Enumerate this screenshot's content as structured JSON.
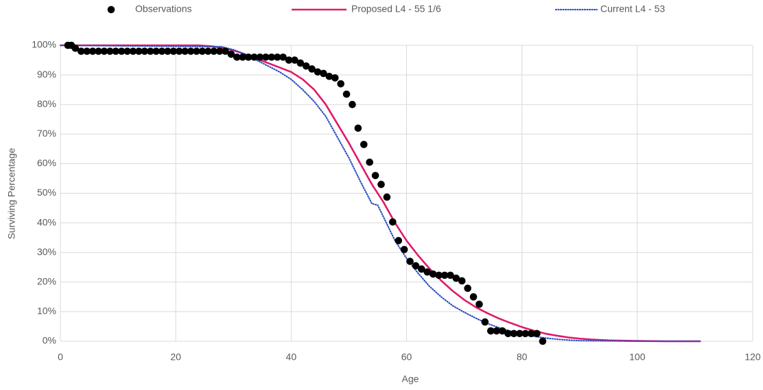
{
  "chart_data": {
    "type": "scatter",
    "x_label": "Age",
    "y_label": "Surviving Percentage",
    "xlim": [
      0,
      120
    ],
    "xticks": [
      0,
      20,
      40,
      60,
      80,
      100,
      120
    ],
    "ylim": [
      0,
      100
    ],
    "yticks": [
      {
        "value": 0,
        "label": "0%"
      },
      {
        "value": 10,
        "label": "10%"
      },
      {
        "value": 20,
        "label": "20%"
      },
      {
        "value": 30,
        "label": "30%"
      },
      {
        "value": 40,
        "label": "40%"
      },
      {
        "value": 50,
        "label": "50%"
      },
      {
        "value": 60,
        "label": "60%"
      },
      {
        "value": 70,
        "label": "70%"
      },
      {
        "value": 80,
        "label": "80%"
      },
      {
        "value": 90,
        "label": "90%"
      },
      {
        "value": 100,
        "label": "100%"
      }
    ],
    "grid": true,
    "legend": "top",
    "series": [
      {
        "name": "Observations",
        "type": "scatter",
        "color": "#000000",
        "x": [
          1.3,
          1.9,
          2.6,
          3.6,
          4.6,
          5.6,
          6.6,
          7.6,
          8.6,
          9.6,
          10.6,
          11.6,
          12.6,
          13.6,
          14.6,
          15.6,
          16.6,
          17.6,
          18.6,
          19.6,
          20.6,
          21.6,
          22.6,
          23.6,
          24.6,
          25.6,
          26.6,
          27.6,
          28.6,
          29.6,
          30.6,
          31.6,
          32.6,
          33.6,
          34.6,
          35.6,
          36.6,
          37.6,
          38.6,
          39.6,
          40.6,
          41.6,
          42.6,
          43.6,
          44.6,
          45.6,
          46.6,
          47.6,
          48.6,
          49.6,
          50.6,
          51.6,
          52.6,
          53.6,
          54.6,
          55.6,
          56.6,
          57.6,
          58.6,
          59.6,
          60.6,
          61.6,
          62.6,
          63.6,
          64.6,
          65.6,
          66.6,
          67.6,
          68.6,
          69.6,
          70.6,
          71.6,
          72.6,
          73.6,
          74.6,
          75.6,
          76.6,
          77.6,
          78.6,
          79.6,
          80.6,
          81.6,
          82.6,
          83.6
        ],
        "values": [
          100,
          100,
          99,
          98,
          98,
          98,
          98,
          98,
          98,
          98,
          98,
          98,
          98,
          98,
          98,
          98,
          98,
          98,
          98,
          98,
          98,
          98,
          98,
          98,
          98,
          98,
          98,
          98,
          98,
          97,
          96,
          96,
          96,
          96,
          96,
          96,
          96,
          96,
          96,
          95,
          95,
          94,
          93,
          92,
          91,
          90.5,
          89.5,
          89,
          87,
          83.5,
          80,
          72,
          66.5,
          60.5,
          56,
          53,
          48.7,
          40.3,
          34,
          31,
          27,
          25.5,
          24.4,
          23.4,
          22.7,
          22.3,
          22.3,
          22.3,
          21.3,
          20.4,
          17.9,
          15,
          12.5,
          6.5,
          3.5,
          3.5,
          3.5,
          2.6,
          2.6,
          2.6,
          2.6,
          2.6,
          2.6,
          0
        ]
      },
      {
        "name": "Proposed L4 - 55 1/6",
        "type": "line",
        "style": "solid",
        "color": "#e0196a",
        "x": [
          0,
          24,
          26,
          28,
          30,
          32,
          34,
          36,
          38,
          40,
          42,
          44,
          46,
          48,
          50,
          52,
          54,
          56,
          58,
          60,
          62,
          64,
          66,
          68,
          70,
          72,
          74,
          76,
          78,
          80,
          82,
          84,
          86,
          88,
          90,
          92,
          95,
          100,
          105,
          111
        ],
        "values": [
          100,
          100,
          99.7,
          99.2,
          98.3,
          97,
          95.5,
          94,
          92.5,
          91,
          88.5,
          85,
          80,
          73.5,
          67,
          60,
          53,
          47,
          40,
          34,
          29,
          24.5,
          20.5,
          17,
          14,
          11.5,
          9.5,
          7.7,
          6.2,
          4.8,
          3.6,
          2.6,
          1.9,
          1.3,
          0.9,
          0.6,
          0.3,
          0.1,
          0,
          0
        ]
      },
      {
        "name": "Current L4 - 53",
        "type": "line",
        "style": "dotted",
        "color": "#2e50c0",
        "x": [
          0,
          28,
          30,
          32,
          34,
          36,
          38,
          40,
          42,
          44,
          46,
          48,
          50,
          52,
          54,
          55,
          56,
          58,
          60,
          62,
          64,
          66,
          68,
          70,
          72,
          74,
          76,
          78,
          80,
          82,
          84,
          86,
          88,
          90,
          95,
          100,
          111
        ],
        "values": [
          100,
          99.5,
          98.5,
          97,
          95,
          93,
          91,
          88.5,
          85,
          81,
          76,
          69,
          62,
          54,
          46.5,
          46,
          42,
          34,
          28,
          23,
          18.5,
          15,
          12,
          9.8,
          7.8,
          6,
          4.6,
          3.4,
          2.4,
          1.7,
          1.1,
          0.7,
          0.4,
          0.2,
          0.1,
          0,
          0
        ]
      }
    ]
  }
}
